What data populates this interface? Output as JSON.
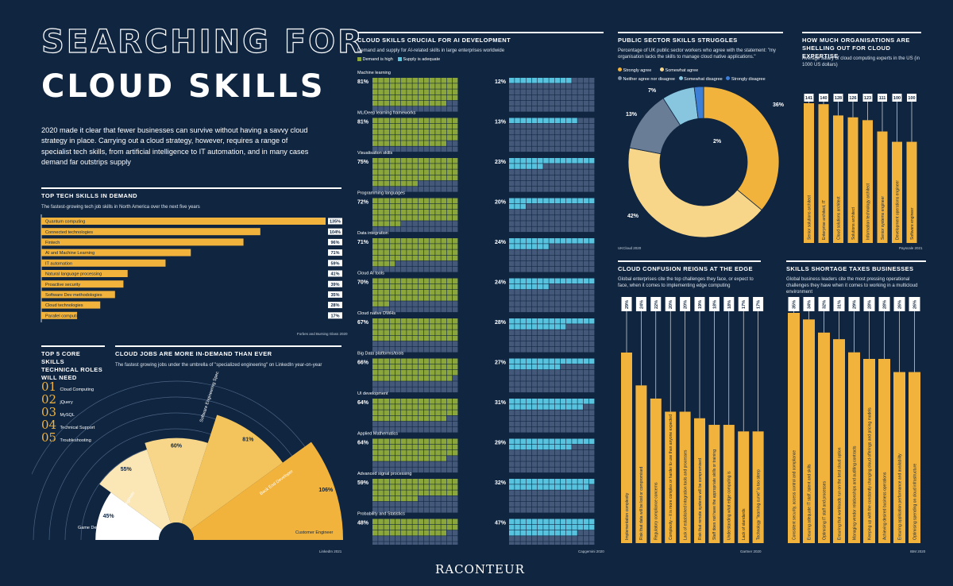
{
  "title": {
    "line1": "SEARCHING FOR",
    "line2": "CLOUD SKILLS"
  },
  "intro": "2020 made it clear that fewer businesses can survive without having a savvy cloud strategy in place. Carrying out a cloud strategy, however, requires a range of specialist tech skills, from artificial intelligence to IT automation, and in many cases demand far outstrips supply",
  "brand": "RACONTEUR",
  "colors": {
    "bg": "#0f2540",
    "gold": "#f2b33d",
    "light_gold": "#f7d68a",
    "green": "#8ba63a",
    "blue": "#58c3df",
    "slate": "#44597a",
    "pale_blue": "#88c6e0"
  },
  "top_skills": {
    "title": "TOP TECH SKILLS IN DEMAND",
    "subtitle": "The fastest-growing tech job skills in North America over the next five years",
    "source": "Forbes and Burning Glass 2020",
    "chart_data": {
      "type": "bar",
      "orientation": "horizontal",
      "categories": [
        "Quantum computing",
        "Connected technologies",
        "Fintech",
        "AI and Machine Learning",
        "IT automation",
        "Natural language processing",
        "Proactive security",
        "Software Dev methodologies",
        "Cloud technologies",
        "Parallel computing"
      ],
      "values": [
        135,
        104,
        96,
        71,
        59,
        41,
        39,
        35,
        28,
        17
      ],
      "labels": [
        "135%",
        "104%",
        "96%",
        "71%",
        "59%",
        "41%",
        "39%",
        "35%",
        "28%",
        "17%"
      ]
    }
  },
  "core_skills": {
    "title": "TOP 5 CORE SKILLS TECHNICAL ROLES WILL NEED",
    "title_lines": [
      "TOP 5 CORE SKILLS",
      "TECHNICAL ROLES",
      "WILL NEED"
    ],
    "items": [
      {
        "num": "01",
        "name": "Cloud Computing"
      },
      {
        "num": "02",
        "name": "jQuery"
      },
      {
        "num": "03",
        "name": "MySQL"
      },
      {
        "num": "04",
        "name": "Technical Support"
      },
      {
        "num": "05",
        "name": "Troubleshooting"
      }
    ]
  },
  "cloud_jobs": {
    "title": "CLOUD JOBS ARE MORE IN-DEMAND THAN EVER",
    "subtitle": "The fastest growing jobs under the umbrella of \"specialized engineering\" on LinkedIn year-on-year",
    "source": "LinkedIn 2021",
    "chart_data": {
      "type": "pie",
      "variant": "polar-area",
      "categories": [
        "Game Developer",
        "Cloud Support Engineer",
        "Software Engineering Specialist",
        "Back End Developer",
        "Customer Engineer"
      ],
      "values": [
        45,
        55,
        60,
        81,
        106
      ],
      "labels": [
        "45%",
        "55%",
        "60%",
        "81%",
        "106%"
      ]
    }
  },
  "ai_skills": {
    "title": "CLOUD SKILLS CRUCIAL FOR AI DEVELOPMENT",
    "subtitle": "Demand and supply for AI-related skills in large enterprises worldwide",
    "legend": [
      "Demand is high",
      "Supply is adequate"
    ],
    "source": "Capgemini 2020",
    "chart_data": {
      "type": "bar",
      "variant": "waffle",
      "categories": [
        "Machine learning",
        "ML/Deep learning frameworks",
        "Visualisation skills",
        "Programming languages",
        "Data integration",
        "Cloud AI tools",
        "Cloud native DWHs",
        "Big Data platforms/tools",
        "UI development",
        "Applied Mathematics",
        "Advanced signal processing",
        "Probability and Statistics"
      ],
      "series": [
        {
          "name": "Demand is high",
          "values": [
            81,
            81,
            75,
            72,
            71,
            70,
            67,
            66,
            64,
            64,
            59,
            48
          ]
        },
        {
          "name": "Supply is adequate",
          "values": [
            12,
            13,
            23,
            20,
            24,
            24,
            28,
            27,
            31,
            29,
            32,
            47
          ]
        }
      ],
      "demand_labels": [
        "81%",
        "81%",
        "75%",
        "72%",
        "71%",
        "70%",
        "67%",
        "66%",
        "64%",
        "64%",
        "59%",
        "48%"
      ],
      "supply_labels": [
        "12%",
        "13%",
        "23%",
        "20%",
        "24%",
        "24%",
        "28%",
        "27%",
        "31%",
        "29%",
        "32%",
        "47%"
      ]
    }
  },
  "public_sector": {
    "title": "PUBLIC SECTOR SKILLS STRUGGLES",
    "subtitle": "Percentage of UK public sector workers who agree with the statement: \"my organisation lacks the skills to manage cloud native applications.\"",
    "source": "UKCloud 2020",
    "chart_data": {
      "type": "pie",
      "variant": "donut",
      "categories": [
        "Strongly agree",
        "Somewhat agree",
        "Neither agree nor disagree",
        "Somewhat disagree",
        "Strongly disagree"
      ],
      "values": [
        36,
        42,
        13,
        7,
        2
      ],
      "labels": [
        "36%",
        "42%",
        "13%",
        "7%",
        "2%"
      ]
    }
  },
  "salaries": {
    "title": "HOW MUCH ORGANISATIONS ARE SHELLING OUT FOR CLOUD EXPERTISE",
    "title_lines": [
      "HOW MUCH ORGANISATIONS ARE",
      "SHELLING OUT FOR CLOUD EXPERTISE"
    ],
    "subtitle": "Average salary of cloud computing experts in the US (in 1000 US dollars)",
    "source": "Payscale 2021",
    "chart_data": {
      "type": "bar",
      "categories": [
        "Senior solutions architect",
        "Enterprise architect, IT",
        "Cloud solutions architect",
        "Solutions architect",
        "Information technology architect",
        "Senior systems engineer",
        "Development operations engineer",
        "Software engineer"
      ],
      "values": [
        141,
        140,
        128,
        126,
        123,
        111,
        100,
        100
      ],
      "labels": [
        "141",
        "140",
        "128",
        "126",
        "123",
        "111",
        "100",
        "100"
      ]
    }
  },
  "edge": {
    "title": "CLOUD CONFUSION REIGNS AT THE EDGE",
    "subtitle": "Global enterprises cite the top challenges they face, or expect to face, when it comes to implementing edge computing",
    "source": "Gartner 2020",
    "chart_data": {
      "type": "bar",
      "categories": [
        "Implementation complexity",
        "Risk that data will be lost or compromised",
        "Regulatory compliance concerns",
        "Complexity – it is more complex or harder to use than anyone expected",
        "Lack of established integration tools and processes",
        "Risk that remote systems will be compromised",
        "Staff does not have the appropriate skills or training",
        "Understanding what edge computing is",
        "Lack of standards",
        "Technology \"learning curve\" is too steep"
      ],
      "values": [
        29,
        24,
        22,
        20,
        20,
        19,
        18,
        18,
        17,
        17
      ],
      "labels": [
        "29%",
        "24%",
        "22%",
        "20%",
        "20%",
        "19%",
        "18%",
        "18%",
        "17%",
        "17%"
      ]
    }
  },
  "shortage": {
    "title": "SKILLS SHORTAGE TAXES BUSINESSES",
    "subtitle": "Global business leaders cite the most pressing operational challenges they have when it comes to working in a multicloud environment",
    "source": "IBM 2020",
    "chart_data": {
      "type": "bar",
      "categories": [
        "Consistent security, access control and compliance",
        "Ensuring adequate IT staff, talent and skills",
        "Optimising IT staff and processes",
        "Ensuring that workloads run on the best cloud option",
        "Managing vendor relationships and auditing contracts",
        "Keeping up with the constantly changing cloud offerings and pricing models",
        "Achieving desired business operations",
        "Ensuring application performance and availability",
        "Optimising spending on cloud infrastructure"
      ],
      "values": [
        35,
        34,
        32,
        31,
        29,
        28,
        28,
        26,
        26
      ],
      "labels": [
        "35%",
        "34%",
        "32%",
        "31%",
        "29%",
        "28%",
        "28%",
        "26%",
        "26%"
      ]
    }
  }
}
